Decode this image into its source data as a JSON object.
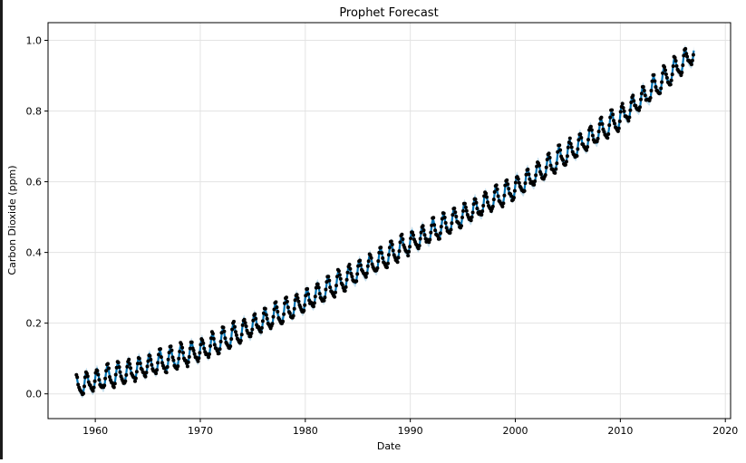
{
  "chart_data": {
    "type": "line",
    "title": "Prophet Forecast",
    "xlabel": "Date",
    "ylabel": "Carbon Dioxide (ppm)",
    "xlim": [
      1955.5,
      2020.5
    ],
    "ylim": [
      -0.07,
      1.05
    ],
    "x_ticks": [
      "1960",
      "1970",
      "1980",
      "1990",
      "2000",
      "2010",
      "2020"
    ],
    "y_ticks": [
      "0.0",
      "0.2",
      "0.4",
      "0.6",
      "0.8",
      "1.0"
    ],
    "grid": true,
    "series": [
      {
        "role": "observed points",
        "color": "#000000",
        "x_start": 1958.2,
        "x_end": 2017.0,
        "trend_points": [
          [
            1958.2,
            0.02
          ],
          [
            1970,
            0.12
          ],
          [
            1980,
            0.26
          ],
          [
            1990,
            0.425
          ],
          [
            2000,
            0.58
          ],
          [
            2010,
            0.78
          ],
          [
            2016.5,
            0.95
          ]
        ],
        "seasonal_amplitude": 0.03
      },
      {
        "role": "forecast line",
        "color": "#0072b2",
        "x_start": 1958.2,
        "x_end": 2017.0,
        "trend_points": [
          [
            1958.2,
            0.02
          ],
          [
            1970,
            0.12
          ],
          [
            1980,
            0.26
          ],
          [
            1990,
            0.425
          ],
          [
            2000,
            0.58
          ],
          [
            2010,
            0.78
          ],
          [
            2016.5,
            0.95
          ]
        ],
        "seasonal_amplitude": 0.03
      }
    ]
  }
}
